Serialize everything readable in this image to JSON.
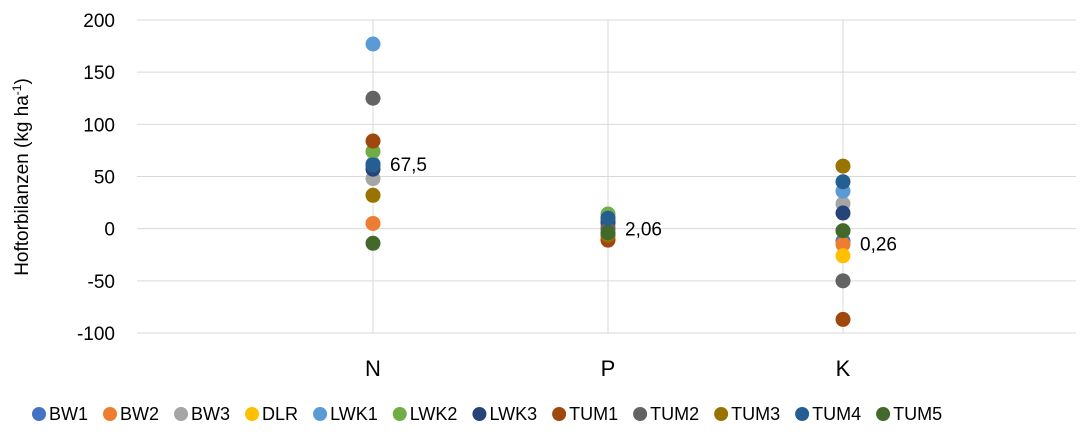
{
  "chart_data": {
    "type": "scatter",
    "title": "",
    "xlabel": "",
    "ylabel": "Hoftorbilanzen (kg ha",
    "ylabel_superscript": "-1",
    "ylabel_suffix": ")",
    "categories": [
      "N",
      "P",
      "K"
    ],
    "ylim": [
      -100,
      200
    ],
    "yticks": [
      -100,
      -50,
      0,
      50,
      100,
      150,
      200
    ],
    "grid": true,
    "legend_position": "bottom",
    "series": [
      {
        "name": "BW1",
        "color": "#4472C4",
        "values": [
          62,
          10,
          -12
        ]
      },
      {
        "name": "BW2",
        "color": "#ED7D31",
        "values": [
          5,
          -8,
          -15
        ]
      },
      {
        "name": "BW3",
        "color": "#A5A5A5",
        "values": [
          48,
          3,
          24
        ]
      },
      {
        "name": "DLR",
        "color": "#FFC000",
        "values": [
          32,
          -5,
          -26
        ]
      },
      {
        "name": "LWK1",
        "color": "#5B9BD5",
        "values": [
          177,
          8,
          36
        ]
      },
      {
        "name": "LWK2",
        "color": "#70AD47",
        "values": [
          74,
          14,
          -2
        ]
      },
      {
        "name": "LWK3",
        "color": "#264478",
        "values": [
          57,
          6,
          15
        ]
      },
      {
        "name": "TUM1",
        "color": "#9E480E",
        "values": [
          84,
          -11,
          -87
        ]
      },
      {
        "name": "TUM2",
        "color": "#636363",
        "values": [
          125,
          0,
          -50
        ]
      },
      {
        "name": "TUM3",
        "color": "#997300",
        "values": [
          32,
          -6,
          60
        ]
      },
      {
        "name": "TUM4",
        "color": "#255E91",
        "values": [
          61,
          10,
          45
        ]
      },
      {
        "name": "TUM5",
        "color": "#43682B",
        "values": [
          -14,
          -4,
          -2
        ]
      }
    ],
    "annotations": [
      {
        "category": "N",
        "y": 62,
        "text": "67,5"
      },
      {
        "category": "P",
        "y": 0,
        "text": "2,06"
      },
      {
        "category": "K",
        "y": -14,
        "text": "0,26"
      }
    ]
  }
}
